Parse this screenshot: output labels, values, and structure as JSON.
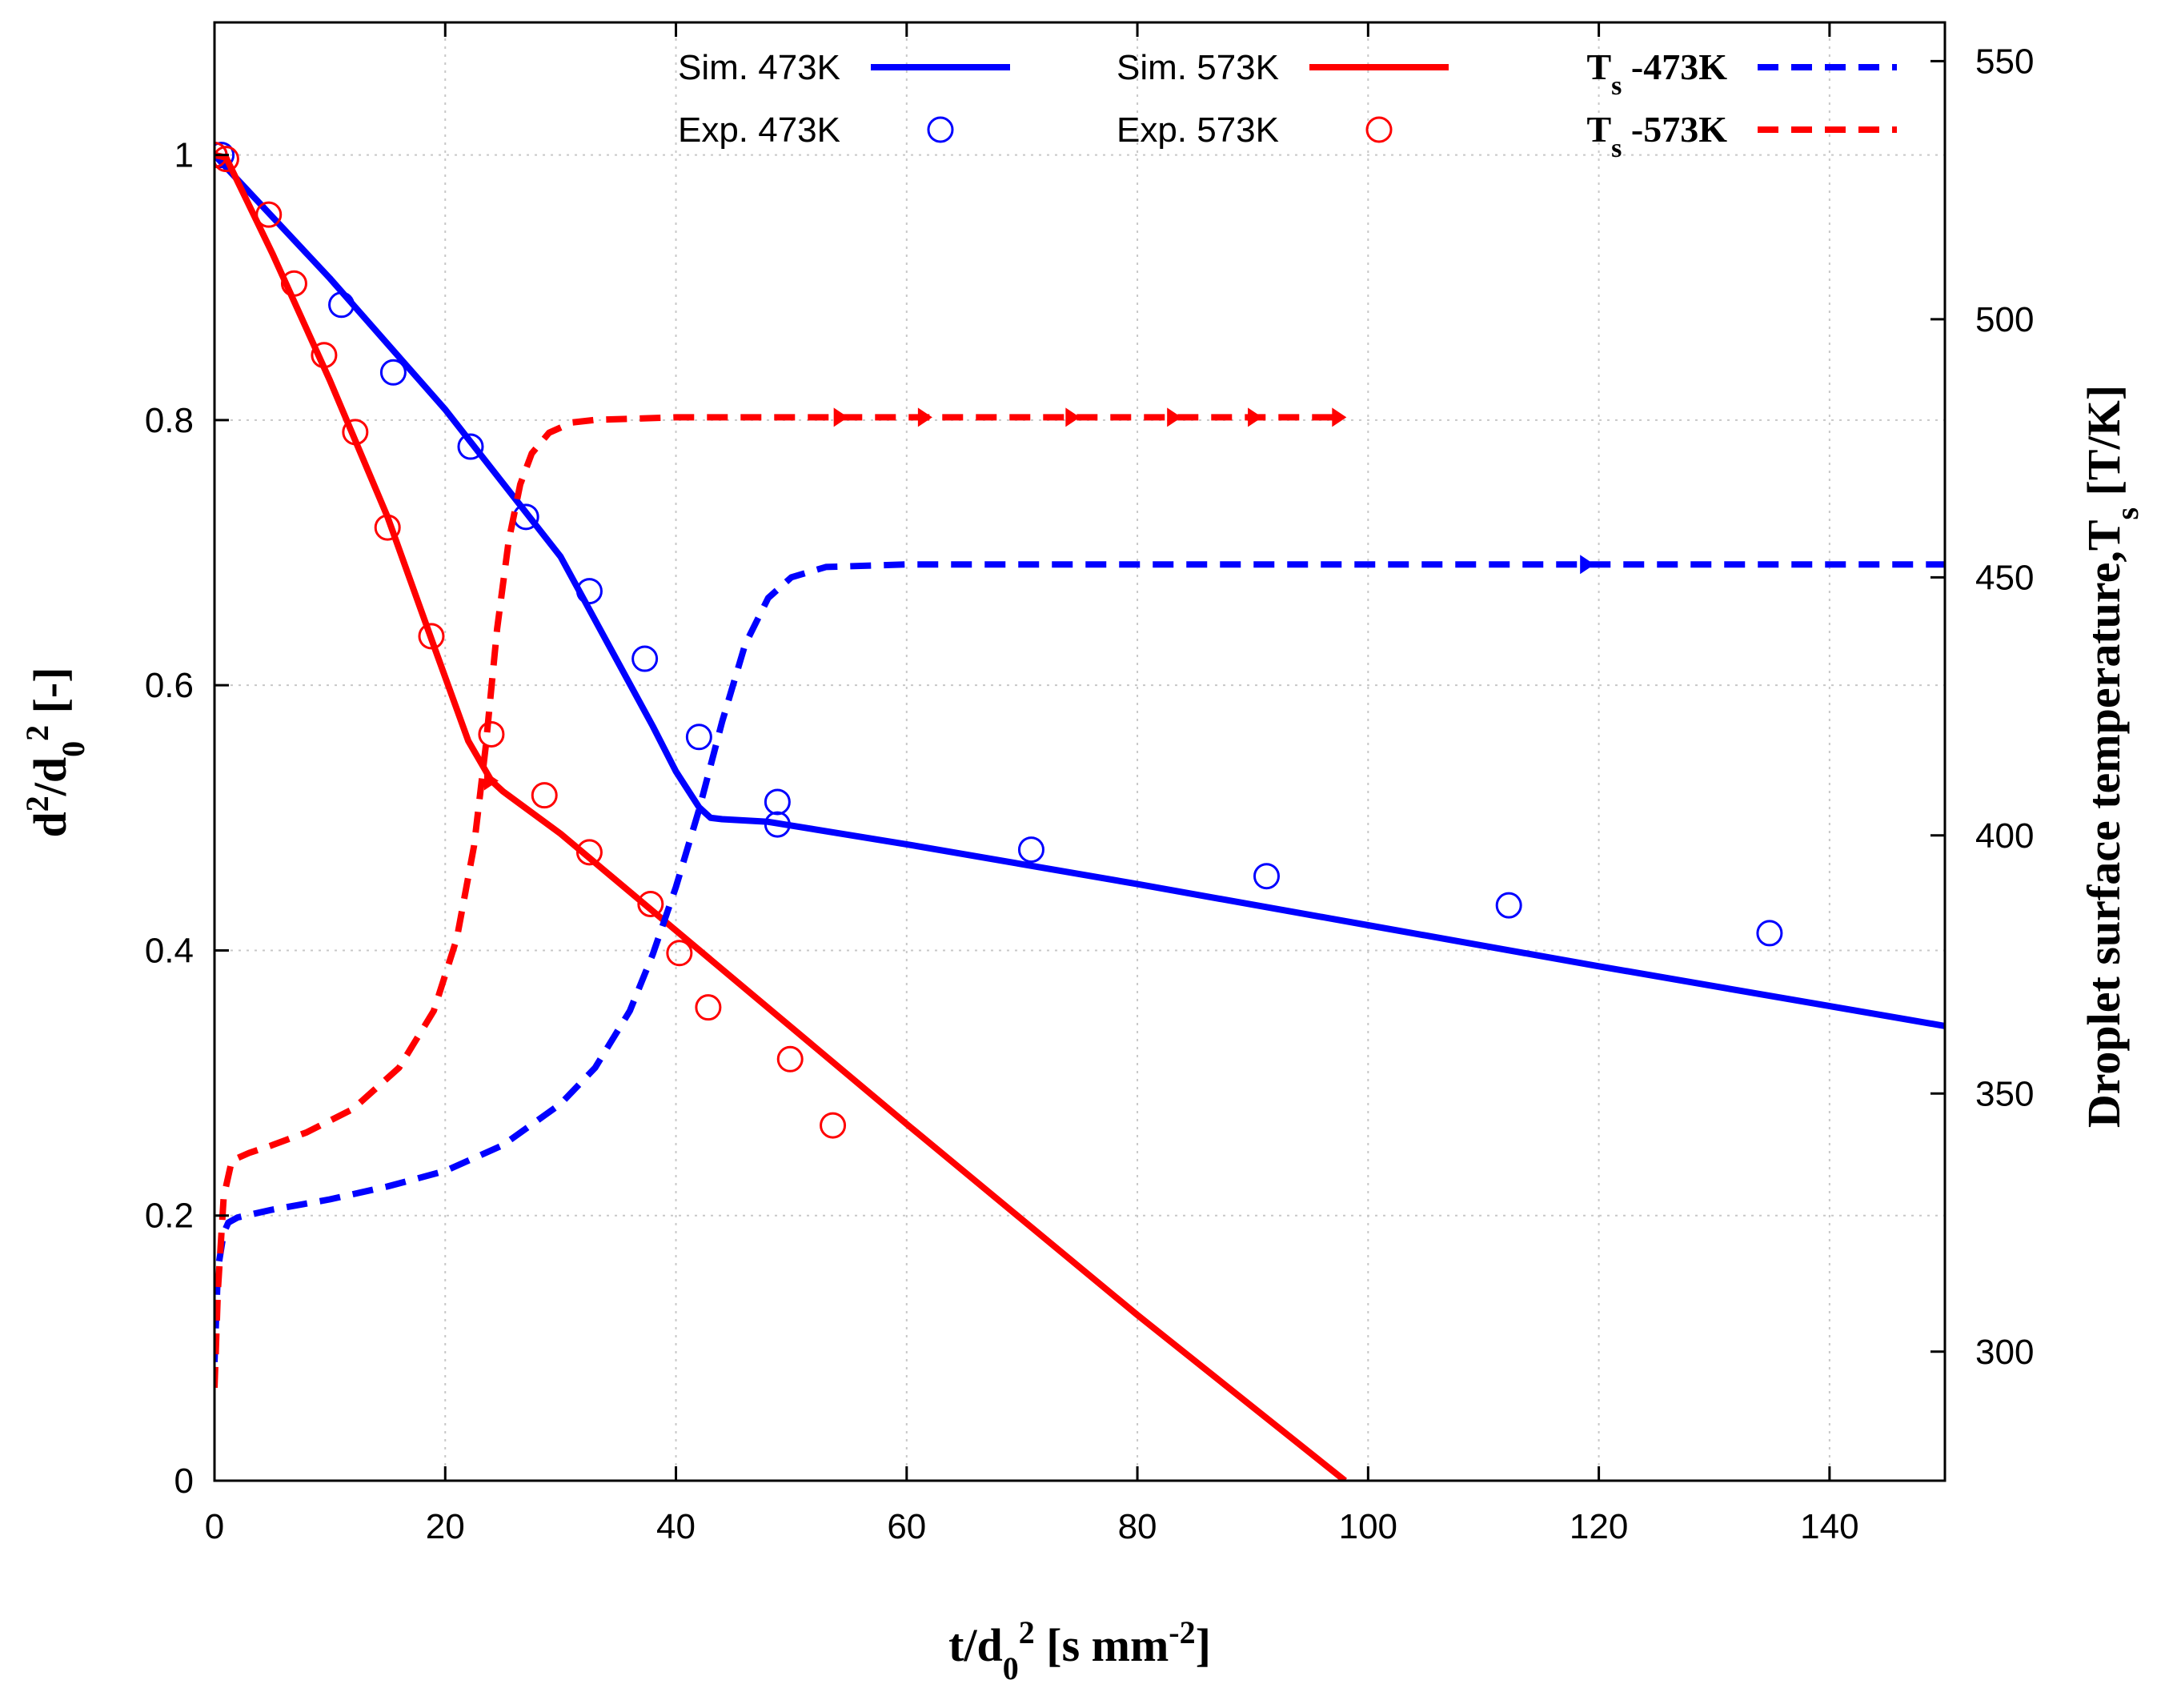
{
  "chart_data": {
    "type": "line",
    "xlabel": {
      "main": "t/d",
      "sub": "0",
      "sup": "2",
      "unit": " [s mm",
      "unit_sup": "-2",
      "unit_end": "]"
    },
    "ylabel": {
      "main": "d",
      "sup1": "2",
      "mid": "/d",
      "sub": "0",
      "sup2": "2",
      "unit": " [-]"
    },
    "y2label": {
      "main": "Droplet surface temperature,T",
      "sub": "s",
      "unit": " [T/K]"
    },
    "xlim": [
      0,
      150
    ],
    "ylim": [
      0,
      1.1
    ],
    "y2lim": [
      275,
      557.5
    ],
    "x_ticks": [
      0,
      20,
      40,
      60,
      80,
      100,
      120,
      140
    ],
    "y_ticks": [
      0,
      0.2,
      0.4,
      0.6,
      0.8,
      1
    ],
    "y2_ticks": [
      300,
      350,
      400,
      450,
      500,
      550
    ],
    "grid": true,
    "legend_position": "top-right",
    "series": [
      {
        "name": "Sim. 473K",
        "kind": "line",
        "axis": "left",
        "color": "#0000ff",
        "dash": "solid",
        "x": [
          0,
          10,
          20,
          30,
          38,
          40,
          42,
          43,
          44,
          48,
          60,
          80,
          100,
          120,
          150
        ],
        "y": [
          1.0,
          0.907,
          0.808,
          0.697,
          0.569,
          0.535,
          0.508,
          0.5,
          0.499,
          0.497,
          0.48,
          0.45,
          0.419,
          0.388,
          0.343
        ]
      },
      {
        "name": "Exp. 473K",
        "kind": "scatter",
        "axis": "left",
        "color": "#0000ff",
        "x": [
          0,
          0.6,
          11,
          15.5,
          22.2,
          27,
          32.5,
          37.3,
          42,
          48.8,
          48.8,
          70.8,
          91.2,
          112.2,
          134.8
        ],
        "y": [
          1.0,
          1.0,
          0.887,
          0.836,
          0.78,
          0.727,
          0.671,
          0.62,
          0.561,
          0.512,
          0.495,
          0.476,
          0.456,
          0.434,
          0.413
        ]
      },
      {
        "name": "Sim. 573K",
        "kind": "line",
        "axis": "left",
        "color": "#ff0000",
        "dash": "solid",
        "x": [
          0,
          1,
          5,
          10,
          15,
          19,
          22,
          24,
          25,
          30,
          40,
          60,
          80,
          98
        ],
        "y": [
          1.0,
          0.998,
          0.926,
          0.83,
          0.727,
          0.63,
          0.558,
          0.528,
          0.52,
          0.488,
          0.415,
          0.269,
          0.125,
          0
        ],
        "markers": [
          {
            "x": 24,
            "y": 0.528
          }
        ]
      },
      {
        "name": "Exp. 573K",
        "kind": "scatter",
        "axis": "left",
        "color": "#ff0000",
        "x": [
          0,
          1,
          4.7,
          6.9,
          9.5,
          12.2,
          15,
          18.8,
          24,
          28.6,
          32.5,
          37.8,
          40.3,
          42.8,
          49.9,
          53.6
        ],
        "y": [
          1.0,
          0.997,
          0.955,
          0.903,
          0.849,
          0.791,
          0.719,
          0.637,
          0.563,
          0.517,
          0.474,
          0.435,
          0.398,
          0.357,
          0.318,
          0.268
        ]
      },
      {
        "name": "T",
        "name_sub": "s",
        "name_suffix": " -473K",
        "kind": "line",
        "axis": "right",
        "color": "#0000ff",
        "dash": "dashed",
        "x": [
          0,
          0.3,
          0.8,
          1.2,
          2,
          5,
          10,
          15,
          20,
          25,
          30,
          33,
          36,
          38,
          40,
          42,
          44,
          46,
          48,
          50,
          53,
          60,
          80,
          100,
          120,
          150
        ],
        "y": [
          298,
          316,
          323,
          325,
          326,
          327.5,
          329.5,
          332,
          335,
          340,
          348,
          355,
          366,
          377,
          390,
          405,
          422,
          437,
          446,
          450,
          452,
          452.5,
          452.5,
          452.5,
          452.5,
          452.5
        ],
        "markers": [
          {
            "x": 119,
            "y": 452.5
          }
        ]
      },
      {
        "name": "T",
        "name_sub": "s",
        "name_suffix": " -573K",
        "kind": "line",
        "axis": "right",
        "color": "#ff0000",
        "dash": "dashed",
        "x": [
          0,
          0.3,
          0.8,
          1.5,
          3,
          5,
          8,
          12,
          16,
          19,
          21,
          22.5,
          23.5,
          24.5,
          25.5,
          26.5,
          27.5,
          29,
          31,
          33,
          40,
          60,
          80,
          98
        ],
        "y": [
          293,
          312,
          330,
          337,
          338.5,
          340,
          342.5,
          347,
          355,
          366,
          380,
          398,
          417,
          440,
          457,
          468,
          474,
          478,
          480,
          480.5,
          481,
          481,
          481,
          481
        ],
        "markers": [
          {
            "x": 54.3,
            "y": 481
          },
          {
            "x": 61.6,
            "y": 481
          },
          {
            "x": 74.4,
            "y": 481
          },
          {
            "x": 83.2,
            "y": 481
          },
          {
            "x": 90.2,
            "y": 481
          },
          {
            "x": 97.5,
            "y": 481
          }
        ]
      }
    ]
  }
}
